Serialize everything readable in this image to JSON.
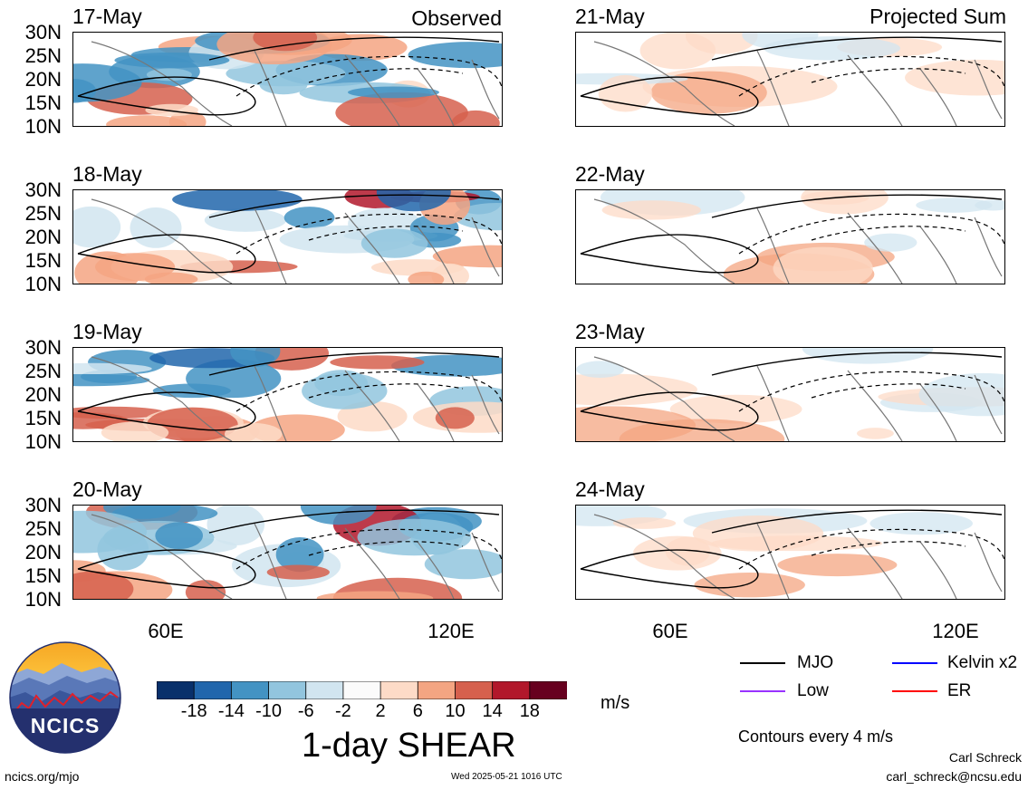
{
  "panels_left": [
    {
      "date": "17-May",
      "tag": "Observed"
    },
    {
      "date": "18-May",
      "tag": ""
    },
    {
      "date": "19-May",
      "tag": ""
    },
    {
      "date": "20-May",
      "tag": ""
    }
  ],
  "panels_right": [
    {
      "date": "21-May",
      "tag": "Projected Sum"
    },
    {
      "date": "22-May",
      "tag": ""
    },
    {
      "date": "23-May",
      "tag": ""
    },
    {
      "date": "24-May",
      "tag": ""
    }
  ],
  "lat_labels": [
    "30N",
    "25N",
    "20N",
    "15N",
    "10N"
  ],
  "lon_labels": [
    "60E",
    "120E"
  ],
  "colorbar": {
    "ticks": [
      "-18",
      "-14",
      "-10",
      "-6",
      "-2",
      "2",
      "6",
      "10",
      "14",
      "18"
    ],
    "colors": [
      "#08306b",
      "#2166ac",
      "#4393c3",
      "#92c5de",
      "#d1e5f0",
      "#fbfbfb",
      "#fddbc7",
      "#f4a582",
      "#d6604d",
      "#b2182b",
      "#67001f"
    ],
    "unit": "m/s",
    "title": "1-day SHEAR"
  },
  "legend": {
    "mjo": "MJO",
    "kelvin": "Kelvin x2",
    "low": "Low",
    "er": "ER",
    "colors": {
      "mjo": "#000000",
      "kelvin": "#0000ff",
      "low": "#9933ff",
      "er": "#ff0000"
    },
    "contour_note": "Contours every 4 m/s"
  },
  "footer": {
    "site": "ncics.org/mjo",
    "timestamp": "Wed 2025-05-21 1016 UTC",
    "author": "Carl Schreck",
    "email": "carl_schreck@ncsu.edu",
    "logo_text": "NCICS"
  }
}
